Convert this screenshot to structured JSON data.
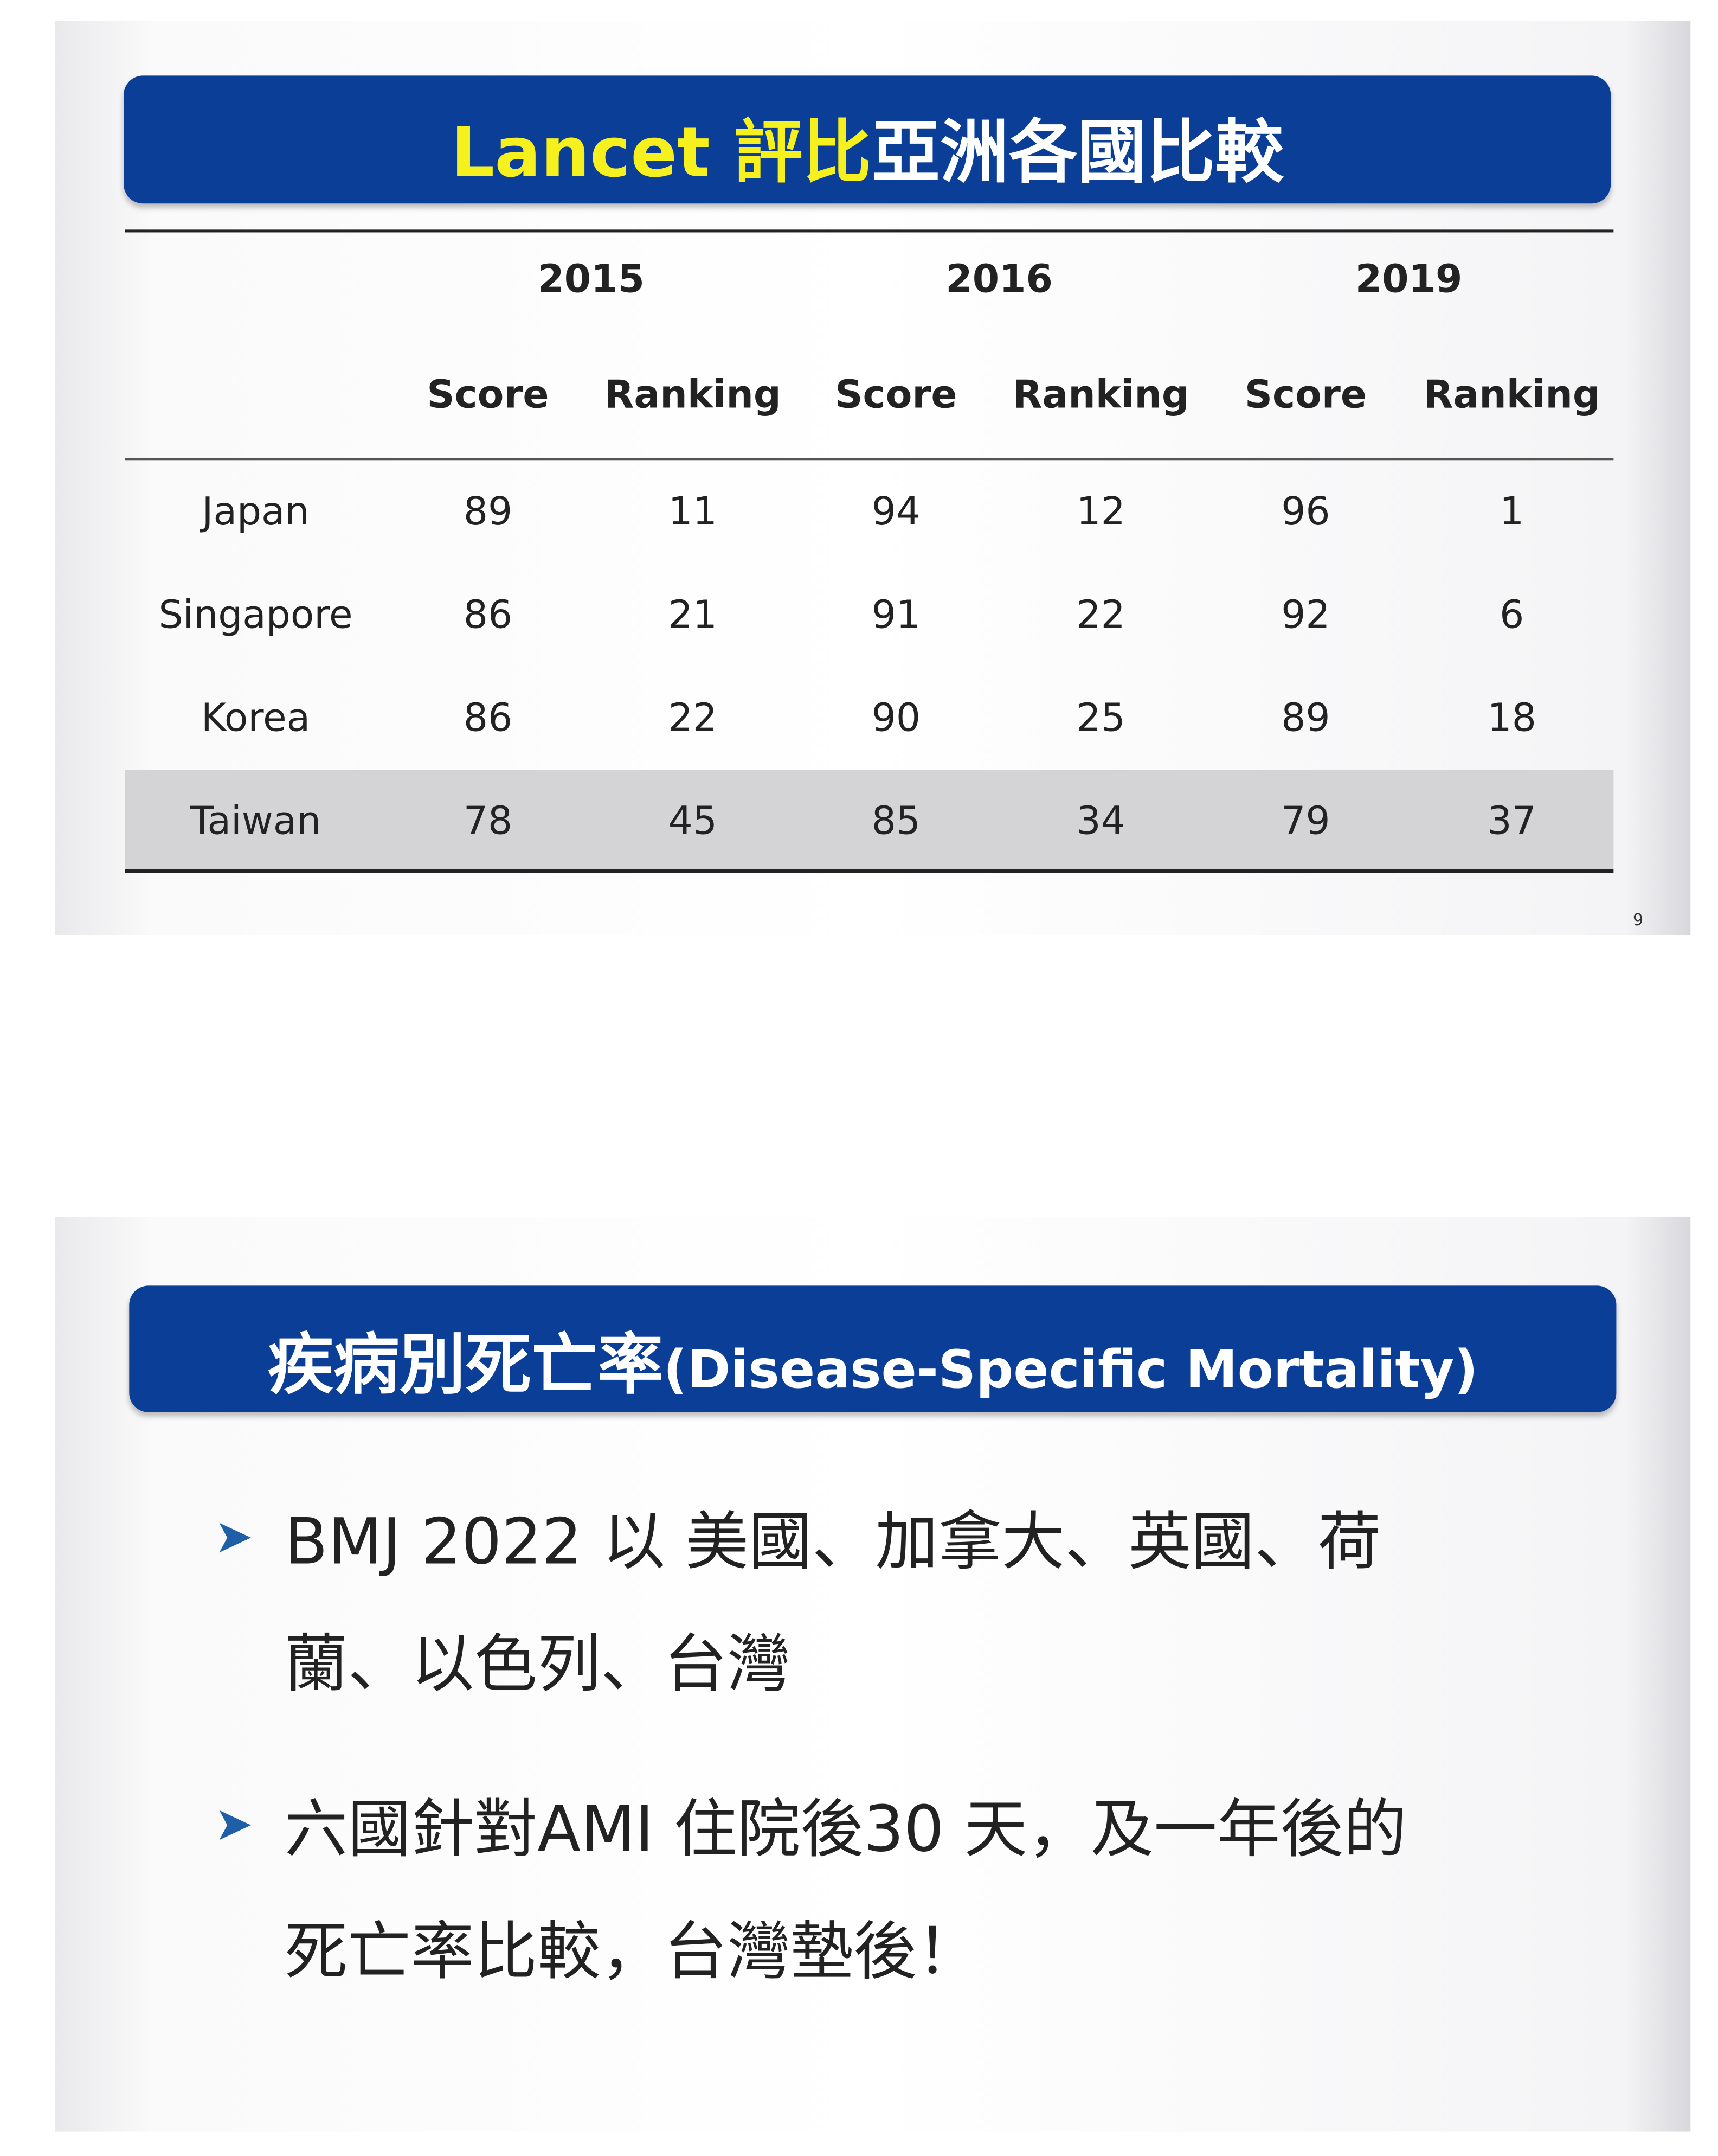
{
  "slides": [
    {
      "title": {
        "highlight": "Lancet 評比",
        "rest": "亞洲各國比較"
      },
      "table": {
        "years": [
          "2015",
          "2016",
          "2019"
        ],
        "subheaders": [
          "Score",
          "Ranking",
          "Score",
          "Ranking",
          "Score",
          "Ranking"
        ],
        "rows": [
          [
            "Japan",
            89,
            11,
            94,
            12,
            96,
            1
          ],
          [
            "Singapore",
            86,
            21,
            91,
            22,
            92,
            6
          ],
          [
            "Korea",
            86,
            22,
            90,
            25,
            89,
            18
          ],
          [
            "Taiwan",
            78,
            45,
            85,
            34,
            79,
            37
          ]
        ]
      },
      "page_number": "9"
    },
    {
      "title": {
        "main": "疾病別死亡率",
        "rest": "(Disease-Specific Mortality)"
      },
      "bullets": [
        {
          "lines": [
            "BMJ 2022 以 美國、加拿大、英國、荷",
            "蘭、以色列、台灣"
          ]
        },
        {
          "lines": [
            "六國針對AMI 住院後30 天，及一年後的",
            "死亡率比較，台灣墊後！"
          ]
        }
      ]
    }
  ]
}
